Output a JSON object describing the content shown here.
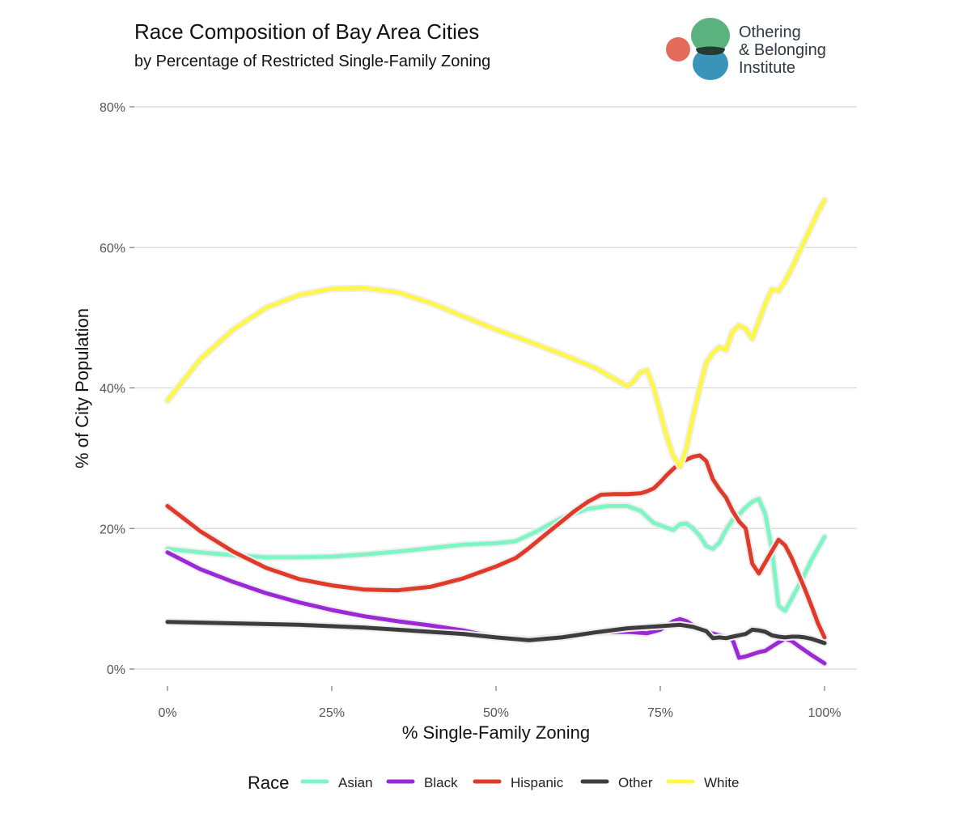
{
  "logo": {
    "lines": [
      "Othering",
      "& Belonging",
      "Institute"
    ],
    "colors": {
      "orange": "#e46a5a",
      "green": "#5bb27e",
      "blue": "#3a93b8",
      "overlap": "#243a33"
    }
  },
  "chart_data": {
    "type": "line",
    "title": "Race Composition of Bay Area Cities",
    "subtitle": "by Percentage of Restricted Single-Family Zoning",
    "xlabel": "% Single-Family Zoning",
    "ylabel": "% of City Population",
    "xlim": [
      0,
      100
    ],
    "ylim": [
      0,
      80
    ],
    "x_ticks": [
      0,
      25,
      50,
      75,
      100
    ],
    "x_tick_labels": [
      "0%",
      "25%",
      "50%",
      "75%",
      "100%"
    ],
    "y_ticks": [
      0,
      20,
      40,
      60,
      80
    ],
    "y_tick_labels": [
      "0%",
      "20%",
      "40%",
      "60%",
      "80%"
    ],
    "grid": "horizontal",
    "legend": {
      "title": "Race",
      "position": "bottom"
    },
    "series": [
      {
        "name": "Asian",
        "color": "#7df5c5",
        "points": [
          [
            0,
            17.1
          ],
          [
            5,
            16.6
          ],
          [
            10,
            16.2
          ],
          [
            15,
            15.9
          ],
          [
            20,
            15.9
          ],
          [
            25,
            16.0
          ],
          [
            30,
            16.3
          ],
          [
            35,
            16.7
          ],
          [
            40,
            17.2
          ],
          [
            45,
            17.7
          ],
          [
            50,
            17.9
          ],
          [
            53,
            18.2
          ],
          [
            56,
            19.5
          ],
          [
            60,
            21.5
          ],
          [
            64,
            22.8
          ],
          [
            67,
            23.2
          ],
          [
            70,
            23.2
          ],
          [
            72,
            22.5
          ],
          [
            74,
            20.8
          ],
          [
            76,
            20.1
          ],
          [
            77,
            19.8
          ],
          [
            78,
            20.6
          ],
          [
            79,
            20.7
          ],
          [
            80,
            20.0
          ],
          [
            81,
            19.0
          ],
          [
            82,
            17.5
          ],
          [
            83,
            17.1
          ],
          [
            84,
            18.0
          ],
          [
            85,
            19.8
          ],
          [
            86,
            21.2
          ],
          [
            87,
            22.0
          ],
          [
            88,
            23.0
          ],
          [
            89,
            23.8
          ],
          [
            90,
            24.2
          ],
          [
            91,
            22.0
          ],
          [
            92,
            17.0
          ],
          [
            93,
            9.0
          ],
          [
            94,
            8.3
          ],
          [
            95,
            10.0
          ],
          [
            97,
            13.5
          ],
          [
            98,
            15.5
          ],
          [
            100,
            18.8
          ]
        ]
      },
      {
        "name": "Black",
        "color": "#9b2ad6",
        "points": [
          [
            0,
            16.6
          ],
          [
            5,
            14.2
          ],
          [
            10,
            12.4
          ],
          [
            15,
            10.8
          ],
          [
            20,
            9.5
          ],
          [
            25,
            8.4
          ],
          [
            30,
            7.5
          ],
          [
            35,
            6.8
          ],
          [
            40,
            6.2
          ],
          [
            45,
            5.5
          ],
          [
            50,
            4.5
          ],
          [
            55,
            4.2
          ],
          [
            60,
            4.6
          ],
          [
            65,
            5.2
          ],
          [
            70,
            5.3
          ],
          [
            73,
            5.1
          ],
          [
            75,
            5.6
          ],
          [
            77,
            6.8
          ],
          [
            78,
            7.1
          ],
          [
            79,
            6.8
          ],
          [
            80,
            6.2
          ],
          [
            82,
            5.3
          ],
          [
            84,
            4.8
          ],
          [
            86,
            4.2
          ],
          [
            87,
            1.6
          ],
          [
            88,
            1.8
          ],
          [
            90,
            2.4
          ],
          [
            91,
            2.6
          ],
          [
            92,
            3.2
          ],
          [
            93,
            3.8
          ],
          [
            94,
            4.3
          ],
          [
            95,
            4.0
          ],
          [
            96,
            3.3
          ],
          [
            98,
            2.0
          ],
          [
            100,
            0.8
          ]
        ]
      },
      {
        "name": "Hispanic",
        "color": "#e03a2a",
        "points": [
          [
            0,
            23.2
          ],
          [
            5,
            19.6
          ],
          [
            10,
            16.7
          ],
          [
            15,
            14.4
          ],
          [
            20,
            12.8
          ],
          [
            25,
            11.9
          ],
          [
            30,
            11.3
          ],
          [
            35,
            11.2
          ],
          [
            40,
            11.7
          ],
          [
            45,
            12.9
          ],
          [
            50,
            14.6
          ],
          [
            53,
            15.8
          ],
          [
            55,
            17.2
          ],
          [
            58,
            19.5
          ],
          [
            60,
            21.0
          ],
          [
            62,
            22.5
          ],
          [
            64,
            23.8
          ],
          [
            66,
            24.8
          ],
          [
            68,
            24.9
          ],
          [
            70,
            24.9
          ],
          [
            72,
            25.0
          ],
          [
            73,
            25.3
          ],
          [
            74,
            25.7
          ],
          [
            75,
            26.6
          ],
          [
            76,
            27.6
          ],
          [
            77,
            28.5
          ],
          [
            78,
            29.3
          ],
          [
            79,
            29.8
          ],
          [
            80,
            30.2
          ],
          [
            81,
            30.4
          ],
          [
            82,
            29.6
          ],
          [
            83,
            27.0
          ],
          [
            84,
            25.6
          ],
          [
            85,
            24.4
          ],
          [
            86,
            22.5
          ],
          [
            87,
            21.0
          ],
          [
            88,
            20.0
          ],
          [
            89,
            15.0
          ],
          [
            90,
            13.6
          ],
          [
            91,
            15.2
          ],
          [
            92,
            16.8
          ],
          [
            93,
            18.4
          ],
          [
            94,
            17.6
          ],
          [
            95,
            15.8
          ],
          [
            96,
            13.6
          ],
          [
            97,
            11.4
          ],
          [
            98,
            9.0
          ],
          [
            99,
            6.5
          ],
          [
            100,
            4.5
          ]
        ]
      },
      {
        "name": "Other",
        "color": "#3d3d3d",
        "points": [
          [
            0,
            6.7
          ],
          [
            10,
            6.5
          ],
          [
            20,
            6.3
          ],
          [
            30,
            5.9
          ],
          [
            40,
            5.3
          ],
          [
            45,
            5.0
          ],
          [
            50,
            4.5
          ],
          [
            55,
            4.1
          ],
          [
            60,
            4.5
          ],
          [
            65,
            5.2
          ],
          [
            70,
            5.8
          ],
          [
            75,
            6.1
          ],
          [
            78,
            6.3
          ],
          [
            80,
            6.0
          ],
          [
            82,
            5.4
          ],
          [
            83,
            4.4
          ],
          [
            84,
            4.5
          ],
          [
            85,
            4.4
          ],
          [
            86,
            4.6
          ],
          [
            87,
            4.8
          ],
          [
            88,
            5.0
          ],
          [
            89,
            5.6
          ],
          [
            90,
            5.5
          ],
          [
            91,
            5.3
          ],
          [
            92,
            4.8
          ],
          [
            93,
            4.6
          ],
          [
            94,
            4.5
          ],
          [
            95,
            4.6
          ],
          [
            96,
            4.6
          ],
          [
            97,
            4.5
          ],
          [
            98,
            4.3
          ],
          [
            99,
            4.0
          ],
          [
            100,
            3.7
          ]
        ]
      },
      {
        "name": "White",
        "color": "#fff748",
        "points": [
          [
            0,
            38.2
          ],
          [
            5,
            44.1
          ],
          [
            10,
            48.3
          ],
          [
            15,
            51.4
          ],
          [
            20,
            53.2
          ],
          [
            25,
            54.1
          ],
          [
            30,
            54.2
          ],
          [
            35,
            53.6
          ],
          [
            40,
            52.1
          ],
          [
            45,
            50.2
          ],
          [
            50,
            48.3
          ],
          [
            55,
            46.6
          ],
          [
            60,
            44.8
          ],
          [
            65,
            42.9
          ],
          [
            68,
            41.3
          ],
          [
            70,
            40.2
          ],
          [
            71,
            41.0
          ],
          [
            72,
            42.2
          ],
          [
            73,
            42.5
          ],
          [
            74,
            40.0
          ],
          [
            75,
            36.5
          ],
          [
            76,
            33.0
          ],
          [
            77,
            30.3
          ],
          [
            78,
            28.8
          ],
          [
            79,
            31.5
          ],
          [
            80,
            36.0
          ],
          [
            81,
            40.0
          ],
          [
            82,
            43.6
          ],
          [
            83,
            45.0
          ],
          [
            84,
            45.8
          ],
          [
            85,
            45.4
          ],
          [
            86,
            48.0
          ],
          [
            87,
            48.9
          ],
          [
            88,
            48.4
          ],
          [
            89,
            47.0
          ],
          [
            90,
            49.5
          ],
          [
            91,
            52.0
          ],
          [
            92,
            54.0
          ],
          [
            93,
            53.8
          ],
          [
            94,
            55.2
          ],
          [
            95,
            57.0
          ],
          [
            96,
            59.0
          ],
          [
            97,
            61.0
          ],
          [
            98,
            63.0
          ],
          [
            99,
            65.0
          ],
          [
            100,
            66.7
          ]
        ]
      }
    ]
  }
}
